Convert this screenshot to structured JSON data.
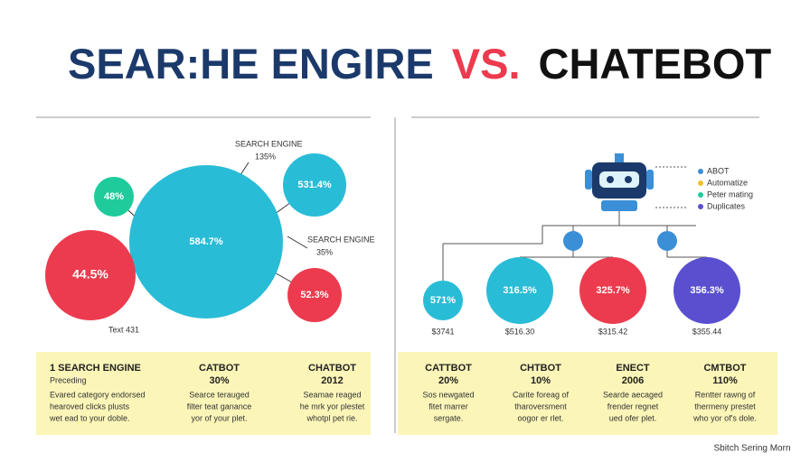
{
  "header": {
    "title_part1": "SEAR:HE ENGIRE",
    "title_part2": "VS.",
    "title_part3": "CHATEBOT"
  },
  "left": {
    "bubbles": [
      "584.7%",
      "48%",
      "531.4%",
      "44.5%",
      "52.3%"
    ],
    "callouts": [
      {
        "label": "SEARCH ENGINE",
        "value": "135%"
      },
      {
        "label": "SEARCH ENGINE",
        "value": "35%"
      }
    ],
    "note": "Text 431"
  },
  "right": {
    "legend": [
      "ABOT",
      "Automatize",
      "Peter mating",
      "Duplicates"
    ],
    "bubbles": [
      {
        "label": "571%",
        "amount": "$3741"
      },
      {
        "label": "316.5%",
        "amount": "$516.30"
      },
      {
        "label": "325.7%",
        "amount": "$315.42"
      },
      {
        "label": "356.3%",
        "amount": "$355.44"
      }
    ]
  },
  "left_table": {
    "columns": [
      {
        "title": "1 SEARCH ENGINE",
        "sub": "Preceding",
        "lines": [
          "Evared category endorsed",
          "hearoved clicks plusts",
          "wet ead to your doble."
        ]
      },
      {
        "title": "CATBOT",
        "sub": "30%",
        "lines": [
          "Searce terauged",
          "filter teat ganance",
          "yor of your plet."
        ]
      },
      {
        "title": "CHATBOT",
        "sub": "2012",
        "lines": [
          "Seamae reaged",
          "he mrk yor plestet",
          "whotpl pet rie."
        ]
      }
    ]
  },
  "right_table": {
    "columns": [
      {
        "title": "CATTBOT",
        "sub": "20%",
        "lines": [
          "Sos newgated",
          "fitet marrer",
          "sergate."
        ]
      },
      {
        "title": "CHTBOT",
        "sub": "10%",
        "lines": [
          "Carite foreag of",
          "tharoversment",
          "oogor er rlet."
        ]
      },
      {
        "title": "ENECT",
        "sub": "2006",
        "lines": [
          "Searde aecaged",
          "frender regnet",
          "ued ofer plet."
        ]
      },
      {
        "title": "CMTBOT",
        "sub": "110%",
        "lines": [
          "Rentter rawng of",
          "thermeny prestet",
          "who yor of's dole."
        ]
      }
    ]
  },
  "footer": "Sbitch Sering Morn"
}
